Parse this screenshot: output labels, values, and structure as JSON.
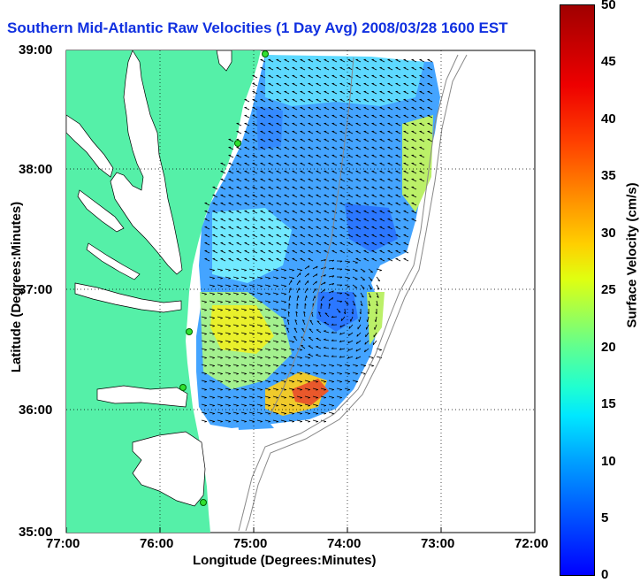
{
  "title": "Southern Mid-Atlantic Raw Velocities (1 Day Avg) 2008/03/28 1600 EST",
  "axes": {
    "xlabel": "Longitude (Degrees:Minutes)",
    "ylabel": "Latitude (Degrees:Minutes)",
    "x_ticks": [
      "77:00",
      "76:00",
      "75:00",
      "74:00",
      "73:00",
      "72:00"
    ],
    "y_ticks": [
      "39:00",
      "38:00",
      "37:00",
      "36:00",
      "35:00"
    ]
  },
  "colorbar": {
    "label": "Surface Velocity (cm/s)",
    "ticks": [
      "0",
      "5",
      "10",
      "15",
      "20",
      "25",
      "30",
      "35",
      "40",
      "45",
      "50"
    ],
    "min": 0,
    "max": 50
  },
  "colors": {
    "land": "#55f0a8",
    "title": "#1030e0",
    "gridline": "#000000"
  }
}
